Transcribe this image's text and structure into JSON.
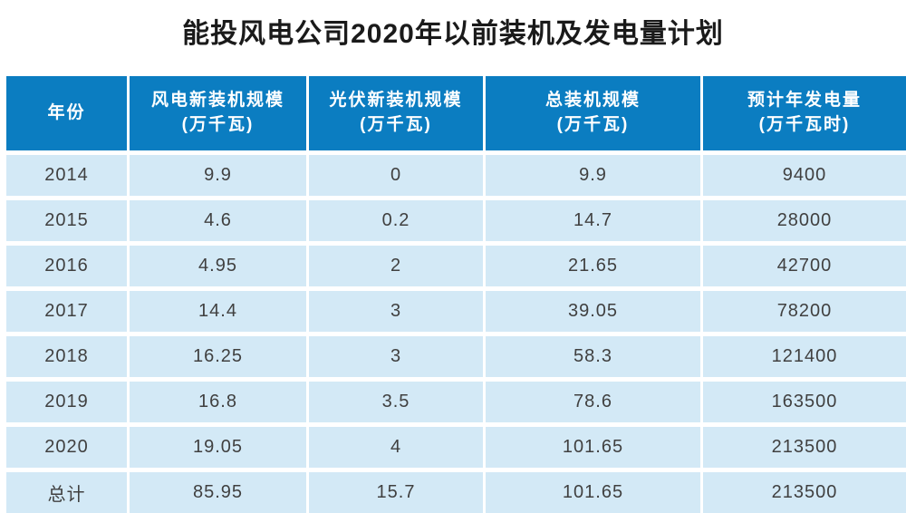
{
  "page": {
    "title": "能投风电公司2020年以前装机及发电量计划"
  },
  "colors": {
    "header_bg": "#0b7dc1",
    "header_text": "#ffffff",
    "row_bg": "#d3e9f6",
    "row_text": "#404040",
    "title_text": "#1a1a1a"
  },
  "table": {
    "columns": [
      {
        "label": "年份",
        "unit": ""
      },
      {
        "label": "风电新装机规模",
        "unit": "(万千瓦)"
      },
      {
        "label": "光伏新装机规模",
        "unit": "(万千瓦)"
      },
      {
        "label": "总装机规模",
        "unit": "(万千瓦)"
      },
      {
        "label": "预计年发电量",
        "unit": "(万千瓦时)"
      }
    ],
    "rows": [
      [
        "2014",
        "9.9",
        "0",
        "9.9",
        "9400"
      ],
      [
        "2015",
        "4.6",
        "0.2",
        "14.7",
        "28000"
      ],
      [
        "2016",
        "4.95",
        "2",
        "21.65",
        "42700"
      ],
      [
        "2017",
        "14.4",
        "3",
        "39.05",
        "78200"
      ],
      [
        "2018",
        "16.25",
        "3",
        "58.3",
        "121400"
      ],
      [
        "2019",
        "16.8",
        "3.5",
        "78.6",
        "163500"
      ],
      [
        "2020",
        "19.05",
        "4",
        "101.65",
        "213500"
      ],
      [
        "总计",
        "85.95",
        "15.7",
        "101.65",
        "213500"
      ]
    ]
  },
  "chart_data": {
    "type": "table",
    "title": "能投风电公司2020年以前装机及发电量计划",
    "columns": [
      "年份",
      "风电新装机规模(万千瓦)",
      "光伏新装机规模(万千瓦)",
      "总装机规模(万千瓦)",
      "预计年发电量(万千瓦时)"
    ],
    "rows": [
      [
        "2014",
        9.9,
        0,
        9.9,
        9400
      ],
      [
        "2015",
        4.6,
        0.2,
        14.7,
        28000
      ],
      [
        "2016",
        4.95,
        2,
        21.65,
        42700
      ],
      [
        "2017",
        14.4,
        3,
        39.05,
        78200
      ],
      [
        "2018",
        16.25,
        3,
        58.3,
        121400
      ],
      [
        "2019",
        16.8,
        3.5,
        78.6,
        163500
      ],
      [
        "2020",
        19.05,
        4,
        101.65,
        213500
      ],
      [
        "总计",
        85.95,
        15.7,
        101.65,
        213500
      ]
    ]
  }
}
